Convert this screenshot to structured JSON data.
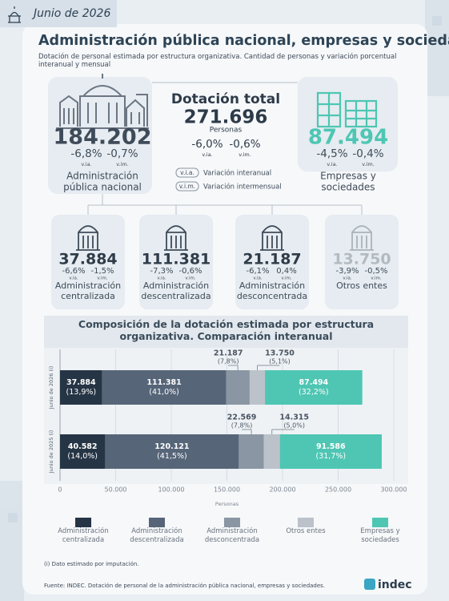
{
  "header": {
    "date": "Junio de 2026"
  },
  "title": "Administración pública nacional, empresas y sociedades",
  "subtitle": "Dotación de personal estimada por estructura organizativa. Cantidad de personas y variación porcentual interanual y mensual",
  "total": {
    "title": "Dotación total",
    "value": "271.696",
    "unit": "Personas",
    "via": "-6,0%",
    "vim": "-0,6%",
    "via_label": "v.ia.",
    "vim_label": "v.im."
  },
  "notes": [
    {
      "abbr": "v.i.a.",
      "text": "Variación interanual"
    },
    {
      "abbr": "v.i.m.",
      "text": "Variación intermensual"
    }
  ],
  "groups": [
    {
      "value": "184.202",
      "via": "-6,8%",
      "vim": "-0,7%",
      "via_label": "v.ia.",
      "vim_label": "v.im.",
      "label": [
        "Administración",
        "pública nacional"
      ]
    },
    {
      "value": "87.494",
      "via": "-4,5%",
      "vim": "-0,4%",
      "via_label": "v.ia.",
      "vim_label": "v.im.",
      "label": [
        "Empresas y",
        "sociedades"
      ]
    }
  ],
  "subgroups": [
    {
      "value": "37.884",
      "via": "-6,6%",
      "vim": "-1,5%",
      "via_label": "v.ia.",
      "vim_label": "v.im.",
      "label": [
        "Administración",
        "centralizada"
      ]
    },
    {
      "value": "111.381",
      "via": "-7,3%",
      "vim": "-0,6%",
      "via_label": "v.ia.",
      "vim_label": "v.im.",
      "label": [
        "Administración",
        "descentralizada"
      ]
    },
    {
      "value": "21.187",
      "via": "-6,1%",
      "vim": "0,4%",
      "via_label": "v.ia.",
      "vim_label": "v.im.",
      "label": [
        "Administración",
        "desconcentrada"
      ]
    },
    {
      "value": "13.750",
      "via": "-3,9%",
      "vim": "-0,5%",
      "via_label": "v.ia.",
      "vim_label": "v.im.",
      "label": [
        "Otros entes"
      ]
    }
  ],
  "chart_data": {
    "type": "stacked-bar",
    "orientation": "horizontal",
    "title": "Composición de la dotación estimada por estructura organizativa. Comparación interanual",
    "categories": [
      "Junio de 2026 (i)",
      "Junio de 2025 (i)"
    ],
    "series": [
      {
        "name": "Administración centralizada",
        "color": "#263545",
        "values": [
          37884,
          40582
        ],
        "value_labels": [
          "37.884",
          "40.582"
        ],
        "share_labels": [
          "(13,9%)",
          "(14,0%)"
        ],
        "label_position": "inside"
      },
      {
        "name": "Administración descentralizada",
        "color": "#566578",
        "values": [
          111381,
          120121
        ],
        "value_labels": [
          "111.381",
          "120.121"
        ],
        "share_labels": [
          "(41,0%)",
          "(41,5%)"
        ],
        "label_position": "inside"
      },
      {
        "name": "Administración desconcentrada",
        "color": "#8a96a3",
        "values": [
          21187,
          22569
        ],
        "value_labels": [
          "21.187",
          "22.569"
        ],
        "share_labels": [
          "(7,8%)",
          "(7,8%)"
        ],
        "label_position": "above"
      },
      {
        "name": "Otros entes",
        "color": "#bcc2c9",
        "values": [
          13750,
          14315
        ],
        "value_labels": [
          "13.750",
          "14.315"
        ],
        "share_labels": [
          "(5,1%)",
          "(5,0%)"
        ],
        "label_position": "above"
      },
      {
        "name": "Empresas y sociedades",
        "color": "#4ec6b3",
        "values": [
          87494,
          91586
        ],
        "value_labels": [
          "87.494",
          "91.586"
        ],
        "share_labels": [
          "(32,2%)",
          "(31,7%)"
        ],
        "label_position": "inside"
      }
    ],
    "xlim": [
      0,
      300000
    ],
    "xticks": [
      0,
      {
        "value": 50000,
        "label": "50.000"
      },
      {
        "value": 100000,
        "label": "100.000"
      },
      {
        "value": 150000,
        "label": "150.000"
      },
      {
        "value": 200000,
        "label": "200.000"
      },
      {
        "value": 250000,
        "label": "250.000"
      },
      {
        "value": 300000,
        "label": "300.000"
      }
    ],
    "xlabel": "Personas",
    "grid": true
  },
  "footnote": "(i) Dato estimado por imputación.",
  "source": "Fuente: INDEC. Dotación de personal de la administración pública nacional, empresas y sociedades.",
  "logo": "indec"
}
